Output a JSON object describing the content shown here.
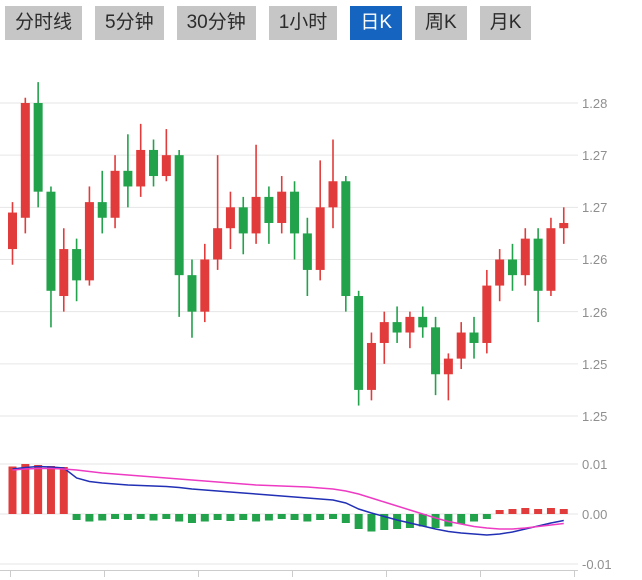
{
  "tabs": {
    "items": [
      {
        "label": "分时线",
        "active": false
      },
      {
        "label": "5分钟",
        "active": false
      },
      {
        "label": "30分钟",
        "active": false
      },
      {
        "label": "1小时",
        "active": false
      },
      {
        "label": "日K",
        "active": true
      },
      {
        "label": "周K",
        "active": false
      },
      {
        "label": "月K",
        "active": false
      }
    ]
  },
  "colors": {
    "up": "#e23b3b",
    "down": "#22a24b",
    "dif_line": "#2130b4",
    "dea_line": "#ed3bc3",
    "grid": "#e6e6e6",
    "active_tab": "#1565c0",
    "tab_bg": "#c6c6c6"
  },
  "chart_data": {
    "type": "candlestick",
    "timeframe": "日K",
    "grid": true,
    "legend": "none",
    "candle_format": [
      "open",
      "high",
      "low",
      "close"
    ],
    "price_axis": {
      "tick_labels": [
        "1.28",
        "1.27",
        "1.27",
        "1.26",
        "1.26",
        "1.25",
        "1.25"
      ],
      "tick_values": [
        1.28,
        1.275,
        1.27,
        1.265,
        1.26,
        1.255,
        1.25
      ],
      "range": [
        1.2465,
        1.2835
      ]
    },
    "candles": [
      [
        1.266,
        1.2705,
        1.2645,
        1.2695
      ],
      [
        1.269,
        1.2805,
        1.2675,
        1.28
      ],
      [
        1.28,
        1.282,
        1.27,
        1.2715
      ],
      [
        1.2715,
        1.272,
        1.2585,
        1.262
      ],
      [
        1.2615,
        1.268,
        1.26,
        1.266
      ],
      [
        1.266,
        1.267,
        1.261,
        1.263
      ],
      [
        1.263,
        1.272,
        1.2625,
        1.2705
      ],
      [
        1.2705,
        1.2735,
        1.2675,
        1.269
      ],
      [
        1.269,
        1.275,
        1.268,
        1.2735
      ],
      [
        1.2735,
        1.277,
        1.27,
        1.272
      ],
      [
        1.272,
        1.278,
        1.271,
        1.2755
      ],
      [
        1.2755,
        1.2765,
        1.272,
        1.273
      ],
      [
        1.273,
        1.2775,
        1.2725,
        1.275
      ],
      [
        1.275,
        1.2755,
        1.2595,
        1.2635
      ],
      [
        1.2635,
        1.265,
        1.2575,
        1.26
      ],
      [
        1.26,
        1.2665,
        1.259,
        1.265
      ],
      [
        1.265,
        1.275,
        1.264,
        1.268
      ],
      [
        1.268,
        1.2715,
        1.266,
        1.27
      ],
      [
        1.27,
        1.271,
        1.2655,
        1.2675
      ],
      [
        1.2675,
        1.276,
        1.2665,
        1.271
      ],
      [
        1.271,
        1.272,
        1.2665,
        1.2685
      ],
      [
        1.2685,
        1.273,
        1.2675,
        1.2715
      ],
      [
        1.2715,
        1.2725,
        1.265,
        1.2675
      ],
      [
        1.2675,
        1.269,
        1.2615,
        1.264
      ],
      [
        1.264,
        1.2745,
        1.263,
        1.27
      ],
      [
        1.27,
        1.2765,
        1.268,
        1.2725
      ],
      [
        1.2725,
        1.273,
        1.26,
        1.2615
      ],
      [
        1.2615,
        1.262,
        1.251,
        1.2525
      ],
      [
        1.2525,
        1.258,
        1.2515,
        1.257
      ],
      [
        1.257,
        1.26,
        1.255,
        1.259
      ],
      [
        1.259,
        1.2605,
        1.257,
        1.258
      ],
      [
        1.258,
        1.26,
        1.2565,
        1.2595
      ],
      [
        1.2595,
        1.2605,
        1.2575,
        1.2585
      ],
      [
        1.2585,
        1.2595,
        1.252,
        1.254
      ],
      [
        1.254,
        1.256,
        1.2515,
        1.2555
      ],
      [
        1.2555,
        1.259,
        1.2545,
        1.258
      ],
      [
        1.258,
        1.2595,
        1.2555,
        1.257
      ],
      [
        1.257,
        1.264,
        1.256,
        1.2625
      ],
      [
        1.2625,
        1.266,
        1.261,
        1.265
      ],
      [
        1.265,
        1.2665,
        1.262,
        1.2635
      ],
      [
        1.2635,
        1.268,
        1.2625,
        1.267
      ],
      [
        1.267,
        1.268,
        1.259,
        1.262
      ],
      [
        1.262,
        1.269,
        1.2615,
        1.268
      ],
      [
        1.268,
        1.27,
        1.2665,
        1.2685
      ]
    ],
    "macd": {
      "axis_labels": [
        "0.01",
        "0.00",
        "-0.01"
      ],
      "axis_values": [
        0.01,
        0.0,
        -0.01
      ],
      "range": [
        -0.012,
        0.012
      ],
      "histogram": [
        0.0095,
        0.01,
        0.0098,
        0.0096,
        0.0094,
        -0.0012,
        -0.0015,
        -0.0013,
        -0.001,
        -0.0012,
        -0.001,
        -0.0013,
        -0.001,
        -0.0015,
        -0.0018,
        -0.0015,
        -0.0012,
        -0.0014,
        -0.0012,
        -0.0015,
        -0.0013,
        -0.001,
        -0.0012,
        -0.0015,
        -0.0012,
        -0.001,
        -0.0018,
        -0.003,
        -0.0035,
        -0.0032,
        -0.003,
        -0.0028,
        -0.0025,
        -0.0028,
        -0.0025,
        -0.002,
        -0.0015,
        -0.001,
        0.0008,
        0.001,
        0.0012,
        0.001,
        0.0012,
        0.001
      ],
      "dif": [
        0.009,
        0.0093,
        0.0095,
        0.0094,
        0.0092,
        0.0072,
        0.0065,
        0.0062,
        0.006,
        0.0058,
        0.0057,
        0.0056,
        0.0055,
        0.0053,
        0.005,
        0.0048,
        0.0046,
        0.0044,
        0.0042,
        0.004,
        0.0038,
        0.0036,
        0.0034,
        0.0032,
        0.003,
        0.0028,
        0.0022,
        0.001,
        0.0002,
        -0.0005,
        -0.0012,
        -0.0018,
        -0.0024,
        -0.003,
        -0.0035,
        -0.0038,
        -0.004,
        -0.0042,
        -0.004,
        -0.0036,
        -0.003,
        -0.0024,
        -0.0018,
        -0.0013
      ],
      "dea": [
        0.0088,
        0.009,
        0.0091,
        0.0091,
        0.009,
        0.0088,
        0.0085,
        0.0082,
        0.008,
        0.0078,
        0.0076,
        0.0074,
        0.0072,
        0.007,
        0.0068,
        0.0066,
        0.0064,
        0.0062,
        0.006,
        0.0058,
        0.0057,
        0.0056,
        0.0055,
        0.0054,
        0.0052,
        0.005,
        0.0046,
        0.004,
        0.0032,
        0.0024,
        0.0016,
        0.0008,
        0.0,
        -0.0008,
        -0.0015,
        -0.002,
        -0.0025,
        -0.0028,
        -0.003,
        -0.003,
        -0.0028,
        -0.0025,
        -0.0022,
        -0.0019
      ]
    }
  }
}
